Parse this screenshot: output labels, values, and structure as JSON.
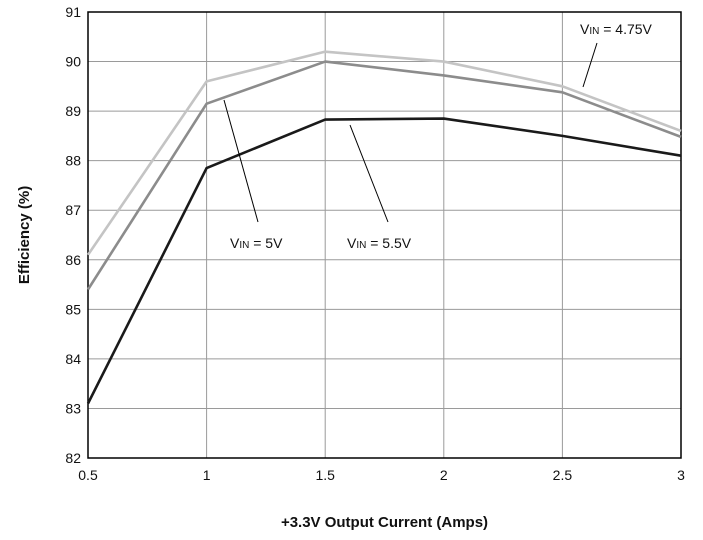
{
  "chart_data": {
    "type": "line",
    "xlabel": "+3.3V Output Current (Amps)",
    "ylabel": "Efficiency (%)",
    "xlim": [
      0.5,
      3
    ],
    "ylim": [
      82,
      91
    ],
    "x_ticks": [
      "0.5",
      "1",
      "1.5",
      "2",
      "2.5",
      "3"
    ],
    "y_ticks": [
      "82",
      "83",
      "84",
      "85",
      "86",
      "87",
      "88",
      "89",
      "90",
      "91"
    ],
    "grid": true,
    "x": [
      0.5,
      1,
      1.5,
      2,
      2.5,
      3
    ],
    "series": [
      {
        "name": "VIN = 4.75V",
        "values": [
          86.1,
          89.6,
          90.2,
          90.0,
          89.5,
          88.6
        ],
        "color": "#c4c4c4"
      },
      {
        "name": "VIN = 5V",
        "values": [
          85.4,
          89.15,
          90.0,
          89.72,
          89.38,
          88.48
        ],
        "color": "#8c8c8c"
      },
      {
        "name": "VIN = 5.5V",
        "values": [
          83.1,
          87.85,
          88.83,
          88.85,
          88.5,
          88.1
        ],
        "color": "#1a1a1a"
      }
    ],
    "annotations": [
      {
        "main": "V",
        "sub": "IN",
        "rest": " = 4.75V"
      },
      {
        "main": "V",
        "sub": "IN",
        "rest": " = 5V"
      },
      {
        "main": "V",
        "sub": "IN",
        "rest": " = 5.5V"
      }
    ]
  }
}
